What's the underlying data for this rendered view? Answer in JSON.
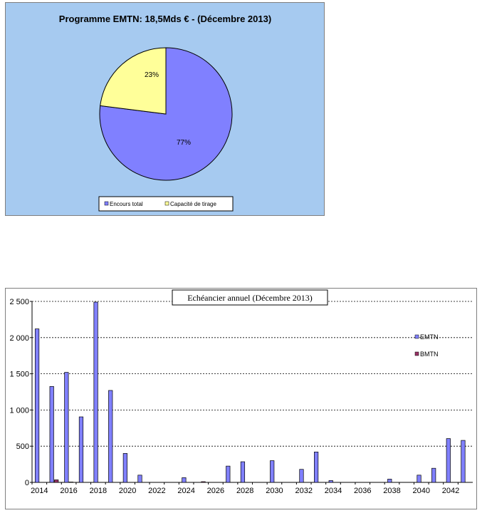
{
  "chart_data": [
    {
      "type": "pie",
      "title": "Programme EMTN: 18,5Mds € - (Décembre 2013)",
      "slices": [
        {
          "label": "Encours total",
          "value": 77,
          "display": "77%",
          "color": "#8080ff"
        },
        {
          "label": "Capacité de tirage",
          "value": 23,
          "display": "23%",
          "color": "#ffff99"
        }
      ],
      "legend": "bottom",
      "background": "#a6caf0"
    },
    {
      "type": "bar",
      "title": "Echéancier annuel (Décembre 2013)",
      "x": [
        2014,
        2015,
        2016,
        2017,
        2018,
        2019,
        2020,
        2021,
        2022,
        2023,
        2024,
        2025,
        2026,
        2027,
        2028,
        2029,
        2030,
        2031,
        2032,
        2033,
        2034,
        2035,
        2036,
        2037,
        2038,
        2039,
        2040,
        2041,
        2042,
        2043
      ],
      "xticks": [
        "2014",
        "2016",
        "2018",
        "2020",
        "2022",
        "2024",
        "2026",
        "2028",
        "2030",
        "2032",
        "2034",
        "2036",
        "2038",
        "2040",
        "2042"
      ],
      "yticks": [
        "0",
        "500",
        "1 000",
        "1 500",
        "2 000",
        "2 500"
      ],
      "ylim": [
        0,
        2500
      ],
      "grid": true,
      "legend": "right",
      "series": [
        {
          "name": "EMTN",
          "color": "#8080ff",
          "values": [
            2120,
            1325,
            1520,
            905,
            2490,
            1270,
            400,
            100,
            0,
            0,
            65,
            0,
            0,
            225,
            285,
            0,
            300,
            0,
            180,
            420,
            25,
            0,
            0,
            0,
            45,
            0,
            100,
            195,
            605,
            580
          ]
        },
        {
          "name": "BMTN",
          "color": "#993366",
          "values": [
            0,
            35,
            5,
            0,
            0,
            0,
            0,
            0,
            0,
            0,
            0,
            10,
            0,
            0,
            0,
            0,
            0,
            0,
            0,
            0,
            0,
            0,
            0,
            0,
            0,
            0,
            0,
            0,
            0,
            0
          ]
        }
      ]
    }
  ]
}
